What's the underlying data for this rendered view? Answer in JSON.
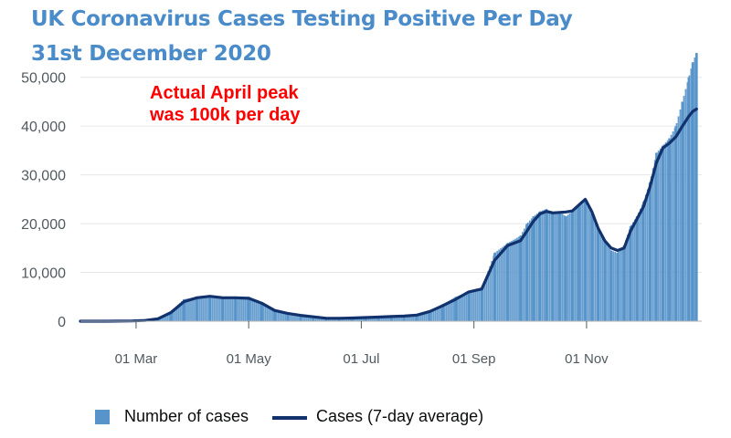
{
  "chart_data": {
    "type": "bar",
    "title": "UK Coronavirus Cases Testing Positive Per Day",
    "subtitle": "31st December 2020",
    "annotation": [
      "Actual April peak",
      "was 100k per day"
    ],
    "xlabel": "",
    "ylabel": "",
    "ylim": [
      0,
      55000
    ],
    "yticks": [
      0,
      10000,
      20000,
      30000,
      40000,
      50000
    ],
    "ytick_labels": [
      "0",
      "10,000",
      "20,000",
      "30,000",
      "40,000",
      "50,000"
    ],
    "xtick_labels": [
      "01 Mar",
      "01 May",
      "01 Jul",
      "01 Sep",
      "01 Nov"
    ],
    "x_units": "weeks since 30 Jan 2020",
    "xlim": [
      0,
      48
    ],
    "xtick_positions": [
      4.3,
      13.0,
      21.7,
      30.4,
      39.1
    ],
    "grid": true,
    "legend_position": "bottom-left",
    "series": [
      {
        "name": "Number of cases",
        "kind": "bar",
        "x": [
          0,
          2,
          4,
          5,
          6,
          7,
          8,
          9,
          10,
          11,
          12,
          13,
          14,
          15,
          16,
          17,
          18,
          19,
          20,
          21,
          22,
          23,
          24,
          25,
          26,
          27,
          28,
          29,
          30,
          31,
          32,
          33,
          34,
          34.5,
          35,
          35.5,
          36,
          36.5,
          37,
          37.5,
          38,
          38.5,
          39,
          39.5,
          40,
          40.5,
          41,
          41.5,
          42,
          42.5,
          43,
          43.5,
          44,
          44.5,
          45,
          45.5,
          46,
          46.5,
          47,
          47.3,
          47.6
        ],
        "values": [
          0,
          0,
          100,
          200,
          600,
          2000,
          4500,
          5000,
          5200,
          4700,
          4900,
          5000,
          3500,
          2000,
          1500,
          1200,
          800,
          500,
          600,
          700,
          800,
          900,
          1000,
          1100,
          1300,
          2200,
          3500,
          5000,
          6000,
          6500,
          14000,
          16000,
          17500,
          20000,
          21500,
          22500,
          23000,
          22000,
          22500,
          21500,
          22500,
          23500,
          24500,
          22000,
          18500,
          16500,
          14500,
          14000,
          15500,
          19500,
          21500,
          24500,
          28500,
          34500,
          36000,
          37500,
          40000,
          45000,
          50000,
          53000,
          55000
        ]
      },
      {
        "name": "Cases (7-day average)",
        "kind": "line",
        "x": [
          0,
          2,
          4,
          5,
          6,
          7,
          8,
          9,
          10,
          11,
          12,
          13,
          14,
          15,
          16,
          17,
          18,
          19,
          20,
          21,
          22,
          23,
          24,
          25,
          26,
          27,
          28,
          29,
          30,
          31,
          32,
          33,
          34,
          34.5,
          35,
          35.5,
          36,
          36.5,
          37,
          37.5,
          38,
          38.5,
          39,
          39.5,
          40,
          40.5,
          41,
          41.5,
          42,
          42.5,
          43,
          43.5,
          44,
          44.5,
          45,
          45.5,
          46,
          46.5,
          47,
          47.3,
          47.6
        ],
        "values": [
          0,
          0,
          50,
          150,
          500,
          1800,
          4000,
          4800,
          5100,
          4800,
          4800,
          4700,
          3700,
          2200,
          1600,
          1200,
          900,
          600,
          600,
          650,
          750,
          850,
          950,
          1050,
          1250,
          2000,
          3200,
          4500,
          6000,
          6600,
          12500,
          15500,
          16500,
          18500,
          20500,
          22000,
          22500,
          22200,
          22300,
          22400,
          22600,
          23800,
          25000,
          22500,
          19000,
          16500,
          15000,
          14500,
          15000,
          18500,
          21000,
          23500,
          27500,
          32500,
          35500,
          36500,
          37800,
          40000,
          42000,
          43000,
          43500
        ]
      }
    ]
  },
  "legend": {
    "bar_label": "Number of cases",
    "line_label": "Cases (7-day average)"
  },
  "colors": {
    "bar": "#5694ca",
    "line": "#12326e",
    "title": "#4a8bc9",
    "annotation": "#ff0000",
    "grid": "#e6e6e6",
    "axis": "#505a5f"
  }
}
